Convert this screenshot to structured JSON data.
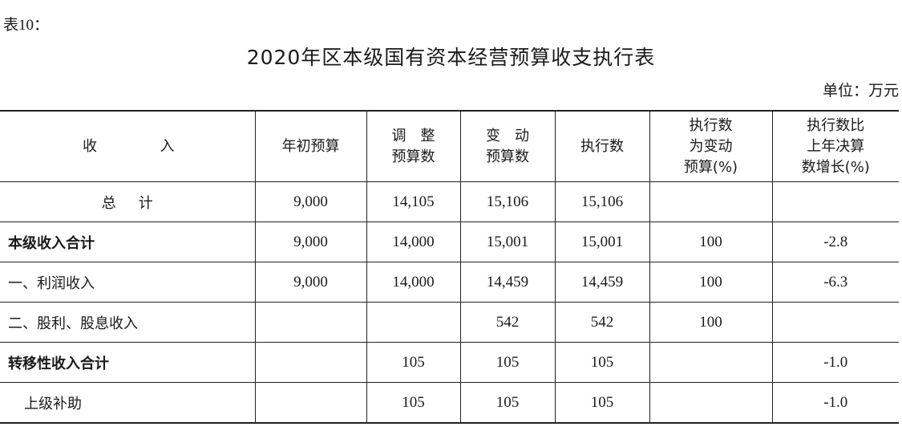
{
  "doc": {
    "table_no": "表10：",
    "title": "2020年区本级国有资本经营预算收支执行表",
    "unit": "单位：万元"
  },
  "header": {
    "income_left": "收",
    "income_right": "入",
    "col1": "年初预算",
    "col2_l1": "调　整",
    "col2_l2": "预算数",
    "col3_l1": "变　动",
    "col3_l2": "预算数",
    "col4": "执行数",
    "col5_l1": "执行数",
    "col5_l2": "为变动",
    "col5_l3": "预算(%)",
    "col6_l1": "执行数比",
    "col6_l2": "上年决算",
    "col6_l3": "数增长(%)"
  },
  "rows": [
    {
      "label_a": "总",
      "label_b": "计",
      "initial": "9,000",
      "adjusted": "14,105",
      "changed": "15,106",
      "executed": "15,106",
      "ratio": "",
      "growth": ""
    },
    {
      "label": "本级收入合计",
      "initial": "9,000",
      "adjusted": "14,000",
      "changed": "15,001",
      "executed": "15,001",
      "ratio": "100",
      "growth": "-2.8"
    },
    {
      "label": "一、利润收入",
      "initial": "9,000",
      "adjusted": "14,000",
      "changed": "14,459",
      "executed": "14,459",
      "ratio": "100",
      "growth": "-6.3"
    },
    {
      "label": "二、股利、股息收入",
      "initial": "",
      "adjusted": "",
      "changed": "542",
      "executed": "542",
      "ratio": "100",
      "growth": ""
    },
    {
      "label": "转移性收入合计",
      "initial": "",
      "adjusted": "105",
      "changed": "105",
      "executed": "105",
      "ratio": "",
      "growth": "-1.0"
    },
    {
      "label": "上级补助",
      "initial": "",
      "adjusted": "105",
      "changed": "105",
      "executed": "105",
      "ratio": "",
      "growth": "-1.0"
    }
  ]
}
